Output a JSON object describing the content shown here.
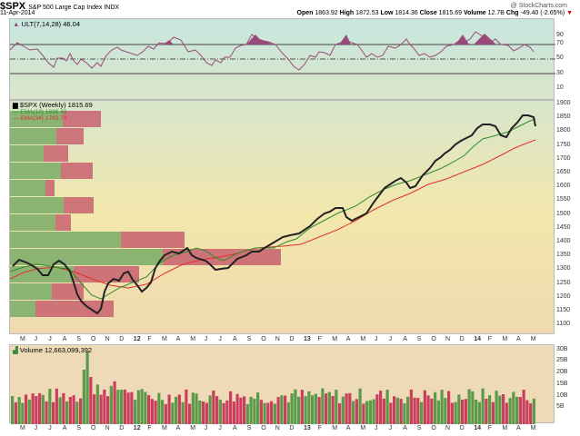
{
  "header": {
    "symbol": "$SPX",
    "name": "S&P 500 Large Cap Index INDX",
    "date": "11-Apr-2014",
    "credit": "@ StockCharts.com",
    "open_label": "Open",
    "open": "1863.92",
    "high_label": "High",
    "high": "1872.53",
    "low_label": "Low",
    "low": "1814.36",
    "close_label": "Close",
    "close": "1815.69",
    "volume_label": "Volume",
    "volume": "12.7B",
    "chg_label": "Chg",
    "chg": "-49.40 (-2.65%)",
    "chg_arrow": "▼"
  },
  "ult_panel": {
    "label": "ULT(7,14,28) 46.04",
    "ticks": [
      "90",
      "70",
      "50",
      "30",
      "10"
    ]
  },
  "price_panel": {
    "label": "$SPX (Weekly) 1815.69",
    "ema13_label": "EMA(13) 1836.43",
    "ema34_label": "EMA(34) 1783.74",
    "ticks": [
      "1900",
      "1850",
      "1800",
      "1750",
      "1700",
      "1650",
      "1600",
      "1550",
      "1500",
      "1450",
      "1400",
      "1350",
      "1300",
      "1250",
      "1200",
      "1150",
      "1100"
    ]
  },
  "volume_panel": {
    "label": "Volume 12,663,099,392",
    "ticks": [
      "30B",
      "25B",
      "20B",
      "15B",
      "10B",
      "5B"
    ]
  },
  "x_axis": [
    "M",
    "J",
    "J",
    "A",
    "S",
    "O",
    "N",
    "D",
    "12",
    "F",
    "M",
    "A",
    "M",
    "J",
    "J",
    "A",
    "S",
    "O",
    "N",
    "D",
    "13",
    "F",
    "M",
    "A",
    "M",
    "J",
    "J",
    "A",
    "S",
    "O",
    "N",
    "D",
    "14",
    "F",
    "M",
    "A",
    "M"
  ],
  "colors": {
    "up": "#5a9a4a",
    "down": "#c8405e",
    "ema13": "#2e8b2e",
    "ema34": "#e03030",
    "ult": "#9a4a78"
  },
  "chart_data": [
    {
      "type": "line",
      "title": "ULT(7,14,28)",
      "series": [
        {
          "name": "ULT",
          "last": 46.04
        }
      ],
      "ylim": [
        0,
        100
      ],
      "reference_lines": [
        70,
        50,
        30
      ]
    },
    {
      "type": "candlestick",
      "title": "$SPX (Weekly) 1815.69",
      "x_range": [
        "May 2011",
        "Apr 2014"
      ],
      "ylim": [
        1075,
        1910
      ],
      "approx_close_by_quarter": {
        "2011-05": 1340,
        "2011-08": 1180,
        "2011-10": 1120,
        "2012-01": 1310,
        "2012-04": 1400,
        "2012-06": 1320,
        "2012-09": 1460,
        "2012-11": 1370,
        "2013-01": 1490,
        "2013-05": 1650,
        "2013-08": 1640,
        "2013-11": 1800,
        "2014-01": 1780,
        "2014-03": 1870,
        "2014-04": 1815.69
      },
      "series": [
        {
          "name": "EMA(13)",
          "last": 1836.43
        },
        {
          "name": "EMA(34)",
          "last": 1783.74
        }
      ],
      "volume_by_price": [
        {
          "level": 1875,
          "up": 48,
          "down": 28
        },
        {
          "level": 1825,
          "up": 37,
          "down": 20
        },
        {
          "level": 1775,
          "up": 27,
          "down": 18
        },
        {
          "level": 1725,
          "up": 41,
          "down": 23
        },
        {
          "level": 1675,
          "up": 29,
          "down": 7
        },
        {
          "level": 1625,
          "up": 43,
          "down": 22
        },
        {
          "level": 1575,
          "up": 35,
          "down": 12
        },
        {
          "level": 1525,
          "up": 90,
          "down": 46
        },
        {
          "level": 1475,
          "up": 123,
          "down": 90
        },
        {
          "level": 1425,
          "up": 52,
          "down": 52
        },
        {
          "level": 1375,
          "up": 33,
          "down": 24
        },
        {
          "level": 1325,
          "up": 20,
          "down": 64
        }
      ]
    },
    {
      "type": "bar",
      "title": "Volume 12,663,099,392",
      "ylim": [
        0,
        32
      ],
      "ylabel": "Billions",
      "peak": {
        "date": "Aug 2011",
        "value": 30
      },
      "typical_range": [
        9,
        15
      ]
    }
  ]
}
